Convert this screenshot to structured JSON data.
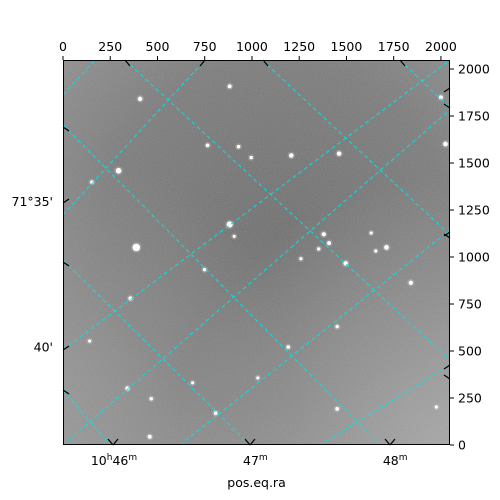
{
  "chart_data": {
    "type": "scatter",
    "title": "",
    "xlabel": "pos.eq.ra",
    "ylabel": "",
    "pixel_axes": {
      "x_ticks": [
        "0",
        "250",
        "500",
        "750",
        "1000",
        "1250",
        "1500",
        "1750",
        "2000"
      ],
      "y_ticks": [
        "0",
        "250",
        "500",
        "750",
        "1000",
        "1250",
        "1500",
        "1750",
        "2000"
      ],
      "xlim": [
        0,
        2048
      ],
      "ylim": [
        0,
        2048
      ]
    },
    "world_axes": {
      "ra_labels": [
        {
          "h": "10",
          "m": "46",
          "show_hour": true,
          "x_pix": 270
        },
        {
          "h": "10",
          "m": "47",
          "show_hour": false,
          "x_pix": 1018
        },
        {
          "h": "10",
          "m": "48",
          "show_hour": false,
          "x_pix": 1758
        }
      ],
      "dec_labels": [
        {
          "text": "71°35'",
          "y_pix": 1295
        },
        {
          "text": "40'",
          "y_pix": 522
        }
      ]
    },
    "grid": true,
    "grid_color": "#00e5e5",
    "image_style": "grayscale",
    "stars": [
      {
        "x": 408,
        "y": 1841,
        "m": 1.0
      },
      {
        "x": 882,
        "y": 1908,
        "m": 0.8
      },
      {
        "x": 765,
        "y": 1594,
        "m": 0.7
      },
      {
        "x": 929,
        "y": 1587,
        "m": 0.7
      },
      {
        "x": 1208,
        "y": 1540,
        "m": 1.0
      },
      {
        "x": 1461,
        "y": 1550,
        "m": 1.0
      },
      {
        "x": 294,
        "y": 1459,
        "m": 1.4
      },
      {
        "x": 153,
        "y": 1398,
        "m": 0.7
      },
      {
        "x": 882,
        "y": 1173,
        "m": 1.6
      },
      {
        "x": 388,
        "y": 1051,
        "m": 2.1
      },
      {
        "x": 1380,
        "y": 1121,
        "m": 0.9
      },
      {
        "x": 1408,
        "y": 1074,
        "m": 0.8
      },
      {
        "x": 1712,
        "y": 1051,
        "m": 1.1
      },
      {
        "x": 1496,
        "y": 966,
        "m": 1.0
      },
      {
        "x": 1841,
        "y": 863,
        "m": 0.9
      },
      {
        "x": 357,
        "y": 780,
        "m": 0.8
      },
      {
        "x": 2024,
        "y": 1601,
        "m": 1.1
      },
      {
        "x": 2000,
        "y": 1849,
        "m": 0.8
      },
      {
        "x": 341,
        "y": 301,
        "m": 0.8
      },
      {
        "x": 467,
        "y": 246,
        "m": 0.6
      },
      {
        "x": 808,
        "y": 169,
        "m": 0.7
      },
      {
        "x": 1451,
        "y": 192,
        "m": 0.7
      },
      {
        "x": 459,
        "y": 44,
        "m": 0.8
      },
      {
        "x": 1192,
        "y": 521,
        "m": 0.7
      },
      {
        "x": 1451,
        "y": 630,
        "m": 0.6
      },
      {
        "x": 996,
        "y": 1529,
        "m": 0.6
      },
      {
        "x": 749,
        "y": 933,
        "m": 0.6
      },
      {
        "x": 1259,
        "y": 991,
        "m": 0.5
      },
      {
        "x": 1353,
        "y": 1043,
        "m": 0.6
      },
      {
        "x": 906,
        "y": 1110,
        "m": 0.5
      },
      {
        "x": 1655,
        "y": 1032,
        "m": 0.5
      },
      {
        "x": 1631,
        "y": 1128,
        "m": 0.5
      },
      {
        "x": 1976,
        "y": 202,
        "m": 0.5
      },
      {
        "x": 1031,
        "y": 357,
        "m": 0.5
      },
      {
        "x": 686,
        "y": 331,
        "m": 0.5
      },
      {
        "x": 141,
        "y": 553,
        "m": 0.5
      }
    ]
  }
}
